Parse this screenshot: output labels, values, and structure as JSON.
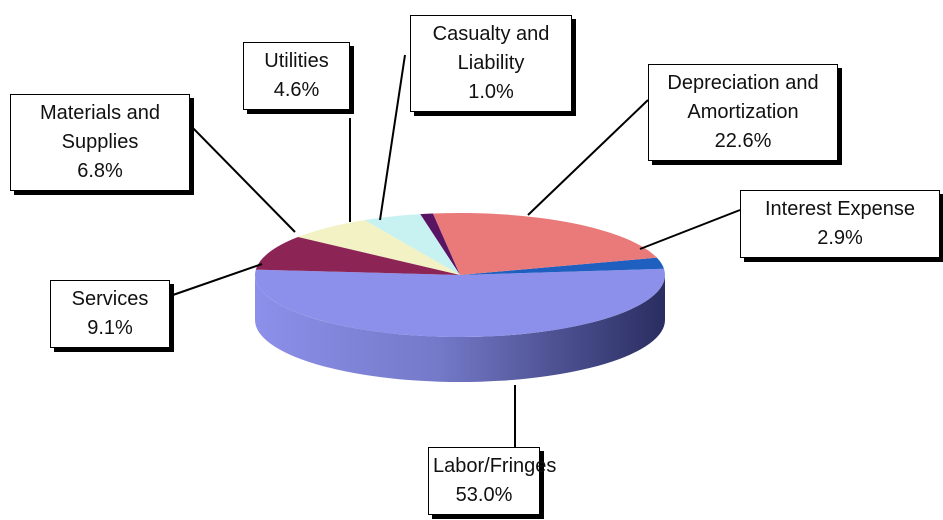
{
  "chart_data": {
    "type": "pie3d",
    "categories": [
      "Labor/Fringes",
      "Interest Expense",
      "Depreciation and Amortization",
      "Casualty and Liability",
      "Utilities",
      "Materials and Supplies",
      "Services"
    ],
    "values": [
      53.0,
      2.9,
      22.6,
      1.0,
      4.6,
      6.8,
      9.1
    ],
    "value_labels": [
      "53.0%",
      "2.9%",
      "22.6%",
      "1.0%",
      "4.6%",
      "6.8%",
      "9.1%"
    ],
    "colors": [
      "#8c90ea",
      "#1f5fc0",
      "#ea7a7a",
      "#5a1464",
      "#c8f2f2",
      "#f2f2c4",
      "#8c2456"
    ]
  }
}
